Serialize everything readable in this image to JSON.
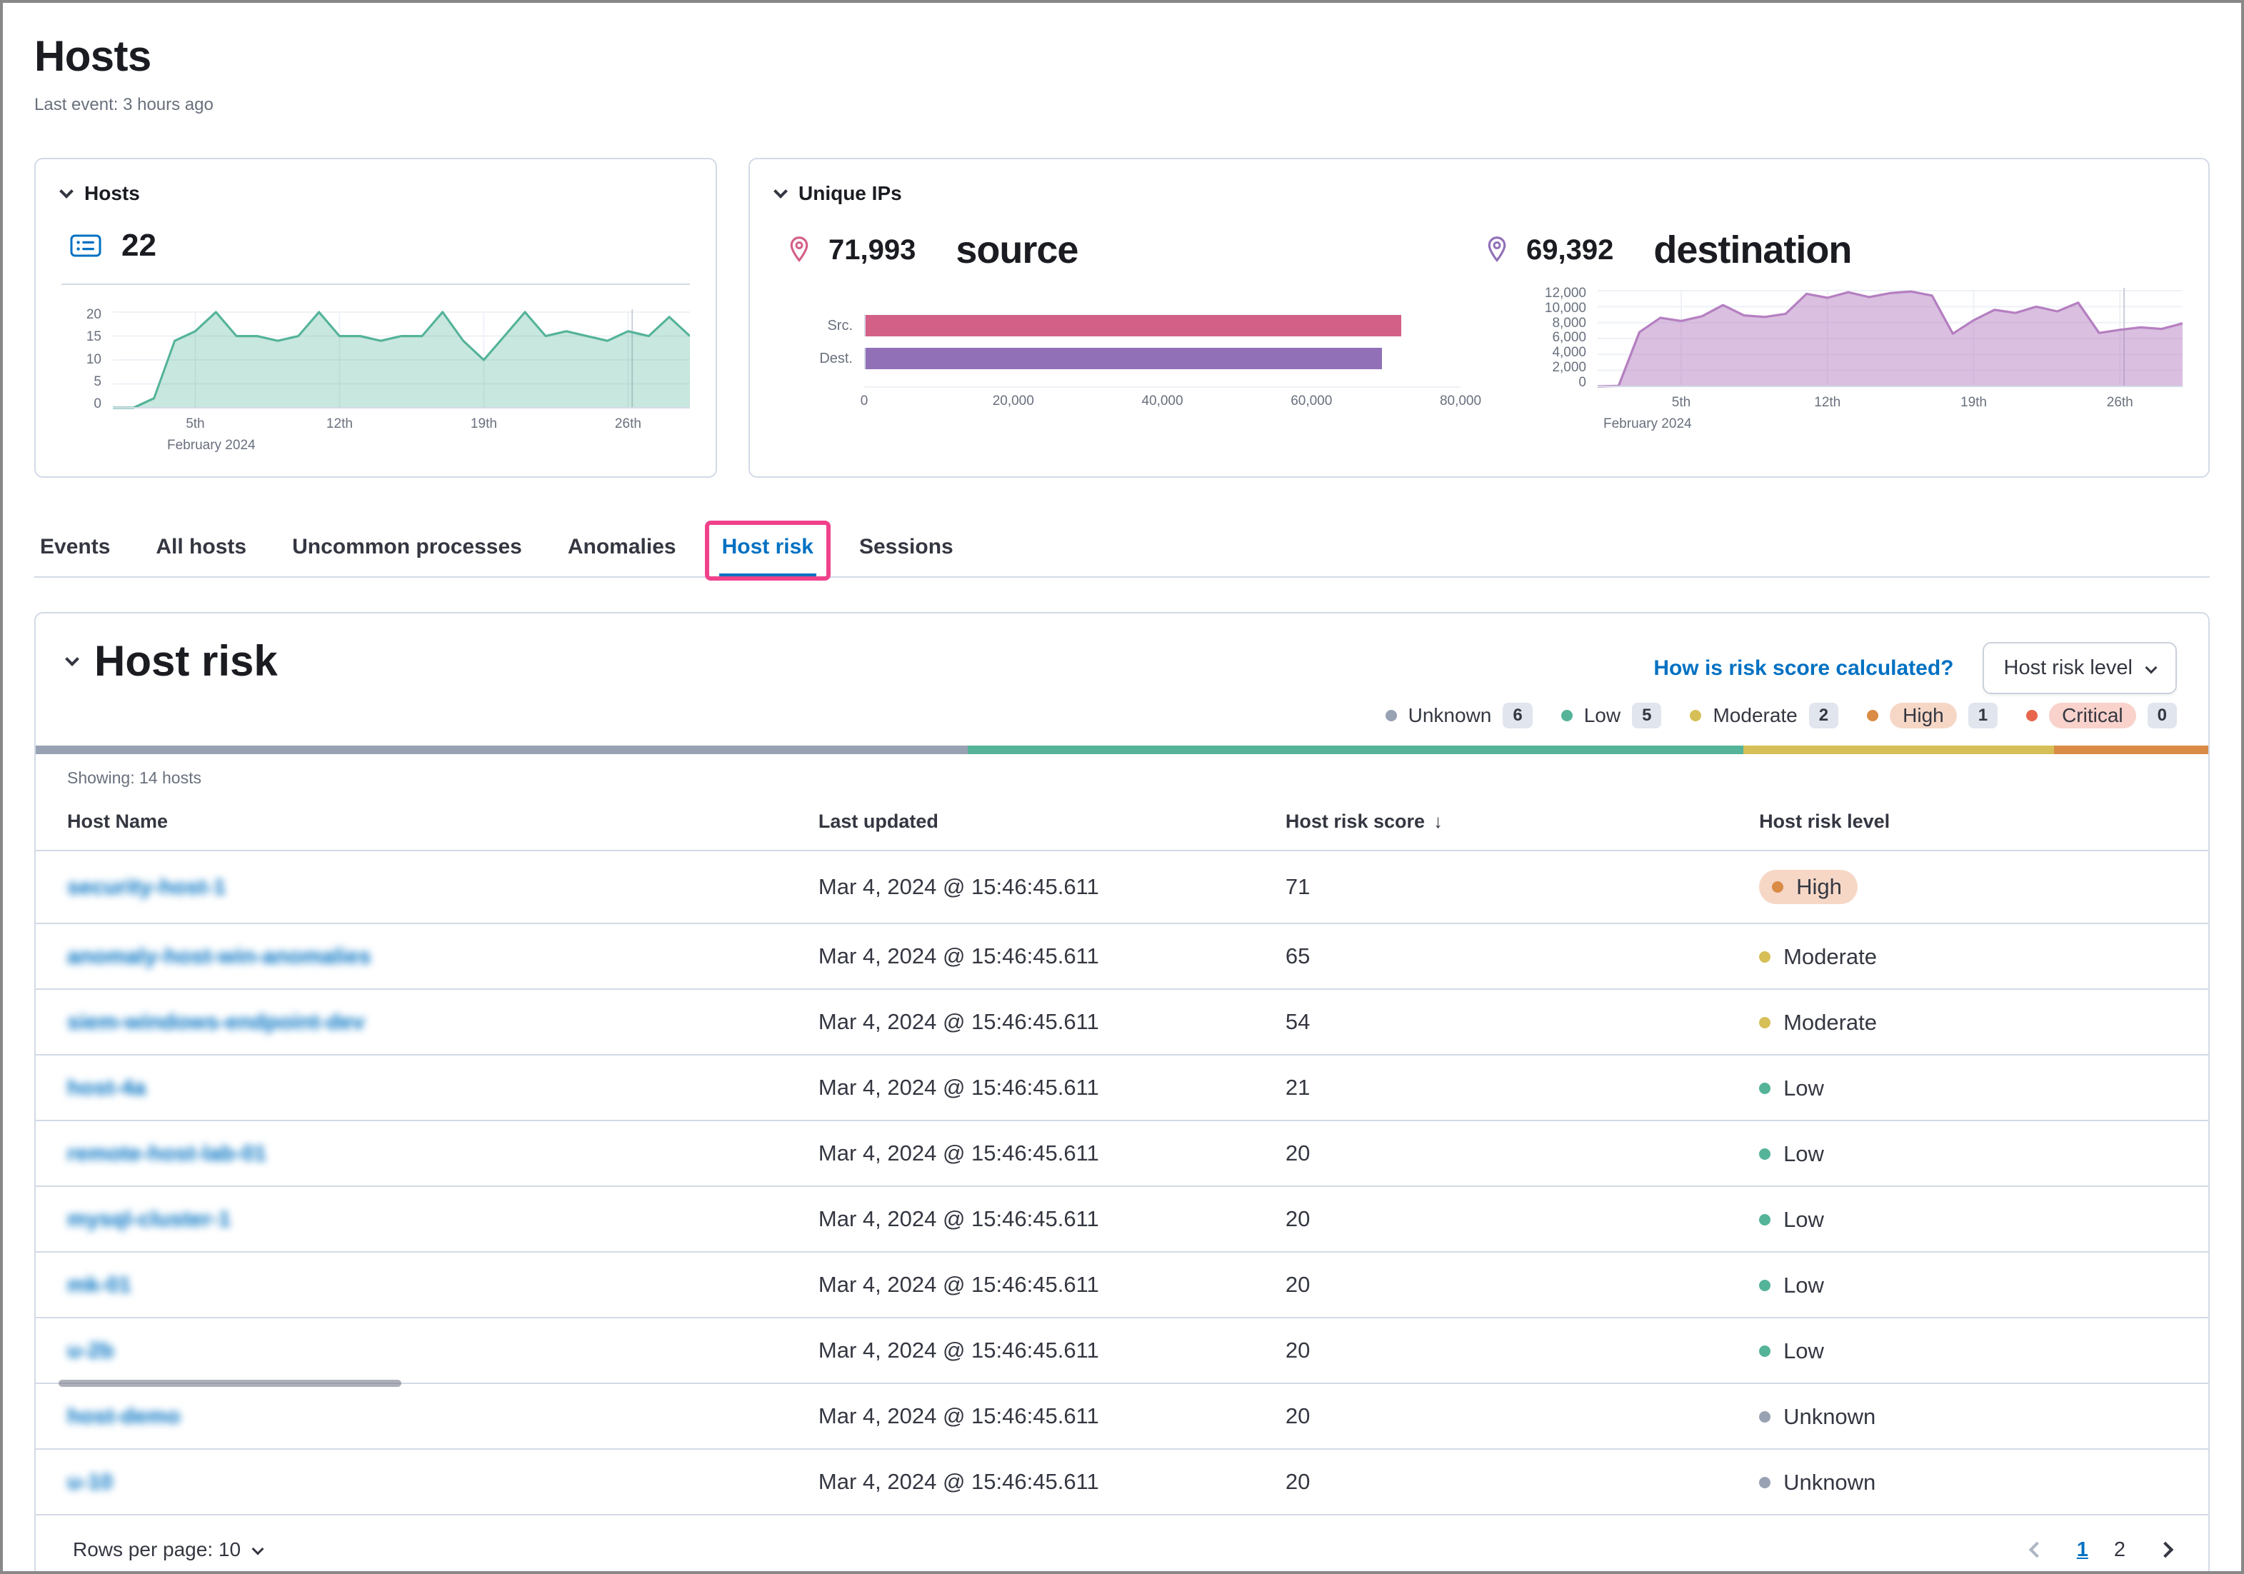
{
  "page": {
    "title": "Hosts",
    "subtitle": "Last event: 3 hours ago"
  },
  "hosts_panel": {
    "title": "Hosts",
    "count": "22"
  },
  "unique_ips_panel": {
    "title": "Unique IPs",
    "source_count": "71,993",
    "source_label": "source",
    "dest_count": "69,392",
    "dest_label": "destination"
  },
  "tabs": [
    {
      "label": "Events",
      "active": false,
      "annotated": false
    },
    {
      "label": "All hosts",
      "active": false,
      "annotated": false
    },
    {
      "label": "Uncommon processes",
      "active": false,
      "annotated": false
    },
    {
      "label": "Anomalies",
      "active": false,
      "annotated": false
    },
    {
      "label": "Host risk",
      "active": true,
      "annotated": true
    },
    {
      "label": "Sessions",
      "active": false,
      "annotated": false
    }
  ],
  "host_risk": {
    "title": "Host risk",
    "link_label": "How is risk score calculated?",
    "filter_button": "Host risk level",
    "level_styles": {
      "Unknown": {
        "dot": "#98A2B3"
      },
      "Low": {
        "dot": "#54B399"
      },
      "Moderate": {
        "dot": "#D6BF57"
      },
      "High": {
        "dot": "#DA8B45",
        "pill": "#F6D7C6"
      },
      "Critical": {
        "dot": "#E7664C",
        "pill": "#F8D2CB"
      }
    },
    "legend": [
      {
        "label": "Unknown",
        "count": "6"
      },
      {
        "label": "Low",
        "count": "5"
      },
      {
        "label": "Moderate",
        "count": "2"
      },
      {
        "label": "High",
        "count": "1"
      },
      {
        "label": "Critical",
        "count": "0"
      }
    ],
    "distribution": [
      {
        "color": "#98A2B3",
        "pct": 42.9
      },
      {
        "color": "#54B399",
        "pct": 35.7
      },
      {
        "color": "#D6BF57",
        "pct": 14.3
      },
      {
        "color": "#DA8B45",
        "pct": 7.1
      }
    ],
    "showing": "Showing: 14 hosts",
    "table": {
      "columns": [
        "Host Name",
        "Last updated",
        "Host risk score",
        "Host risk level"
      ],
      "sort_column": 2,
      "rows": [
        {
          "name": "security-host-1",
          "updated": "Mar 4, 2024 @ 15:46:45.611",
          "score": "71",
          "level": "High"
        },
        {
          "name": "anomaly-host-win-anomalies",
          "updated": "Mar 4, 2024 @ 15:46:45.611",
          "score": "65",
          "level": "Moderate"
        },
        {
          "name": "siem-windows-endpoint-dev",
          "updated": "Mar 4, 2024 @ 15:46:45.611",
          "score": "54",
          "level": "Moderate"
        },
        {
          "name": "host-4a",
          "updated": "Mar 4, 2024 @ 15:46:45.611",
          "score": "21",
          "level": "Low"
        },
        {
          "name": "remote-host-lab-01",
          "updated": "Mar 4, 2024 @ 15:46:45.611",
          "score": "20",
          "level": "Low"
        },
        {
          "name": "mysql-cluster-1",
          "updated": "Mar 4, 2024 @ 15:46:45.611",
          "score": "20",
          "level": "Low"
        },
        {
          "name": "mk-01",
          "updated": "Mar 4, 2024 @ 15:46:45.611",
          "score": "20",
          "level": "Low"
        },
        {
          "name": "u-2b",
          "updated": "Mar 4, 2024 @ 15:46:45.611",
          "score": "20",
          "level": "Low"
        },
        {
          "name": "host-demo",
          "updated": "Mar 4, 2024 @ 15:46:45.611",
          "score": "20",
          "level": "Unknown"
        },
        {
          "name": "u-10",
          "updated": "Mar 4, 2024 @ 15:46:45.611",
          "score": "20",
          "level": "Unknown"
        }
      ]
    },
    "footer": {
      "rows_per_page": "Rows per page: 10",
      "pages": [
        "1",
        "2"
      ],
      "active_page": "1"
    }
  },
  "chart_data": [
    {
      "id": "hosts-over-time",
      "type": "area",
      "title": "Hosts",
      "color": "#54B399",
      "fill": "rgba(84,179,153,0.32)",
      "x": [
        1,
        2,
        3,
        4,
        5,
        6,
        7,
        8,
        9,
        10,
        11,
        12,
        13,
        14,
        15,
        16,
        17,
        18,
        19,
        20,
        21,
        22,
        23,
        24,
        25,
        26,
        27,
        28,
        29
      ],
      "values": [
        0,
        0,
        2,
        14,
        16,
        20,
        15,
        15,
        14,
        15,
        20,
        15,
        15,
        14,
        15,
        15,
        20,
        14,
        10,
        15,
        20,
        15,
        16,
        15,
        14,
        16,
        15,
        19,
        15
      ],
      "ylim": [
        0,
        20
      ],
      "yticks": [
        0,
        5,
        10,
        15,
        20
      ],
      "ytick_labels": [
        "0",
        "5",
        "10",
        "15",
        "20"
      ],
      "xtick_pos": [
        4,
        11,
        18,
        25
      ],
      "xtick_labels": [
        "5th",
        "12th",
        "19th",
        "26th"
      ],
      "markers": [
        25.2,
        28.4
      ],
      "caption": "February 2024"
    },
    {
      "id": "unique-ips-src-dest",
      "type": "bar",
      "orientation": "horizontal",
      "categories": [
        "Src.",
        "Dest."
      ],
      "values": [
        71993,
        69392
      ],
      "colors": [
        "#D36086",
        "#9170B8"
      ],
      "xlim": [
        0,
        80000
      ],
      "xticks": [
        0,
        20000,
        40000,
        60000,
        80000
      ],
      "xtick_labels": [
        "0",
        "20,000",
        "40,000",
        "60,000",
        "80,000"
      ]
    },
    {
      "id": "unique-destination-ips-over-time",
      "type": "area",
      "title": "Unique IPs",
      "color": "#B57FC1",
      "fill": "rgba(181,127,193,0.5)",
      "x": [
        1,
        2,
        3,
        4,
        5,
        6,
        7,
        8,
        9,
        10,
        11,
        12,
        13,
        14,
        15,
        16,
        17,
        18,
        19,
        20,
        21,
        22,
        23,
        24,
        25,
        26,
        27,
        28,
        29
      ],
      "values": [
        0,
        50,
        6800,
        8600,
        8200,
        8800,
        10200,
        8900,
        8700,
        9100,
        11600,
        11100,
        11800,
        11200,
        11700,
        11900,
        11400,
        6600,
        8300,
        9600,
        9200,
        10000,
        9400,
        10500,
        6700,
        7100,
        7400,
        7200,
        7900
      ],
      "ylim": [
        0,
        12000
      ],
      "yticks": [
        0,
        2000,
        4000,
        6000,
        8000,
        10000,
        12000
      ],
      "ytick_labels": [
        "0",
        "2,000",
        "4,000",
        "6,000",
        "8,000",
        "10,000",
        "12,000"
      ],
      "xtick_pos": [
        4,
        11,
        18,
        25
      ],
      "xtick_labels": [
        "5th",
        "12th",
        "19th",
        "26th"
      ],
      "markers": [
        25.2,
        28.4
      ],
      "caption": "February 2024"
    }
  ]
}
